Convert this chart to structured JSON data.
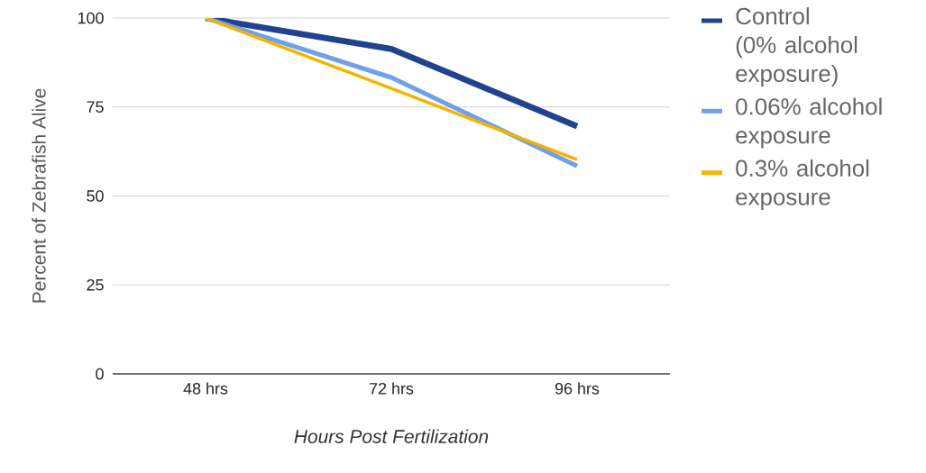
{
  "chart_data": {
    "type": "line",
    "xlabel": "Hours Post Fertilization",
    "ylabel": "Percent of Zebrafish Alive",
    "categories": [
      "48 hrs",
      "72 hrs",
      "96 hrs"
    ],
    "series": [
      {
        "name": "Control (0% alcohol exposure)",
        "color": "#21438f",
        "values": [
          100,
          91.3,
          69.6
        ]
      },
      {
        "name": "0.06% alcohol exposure",
        "color": "#6fa0ea",
        "values": [
          100,
          83.3,
          58.4
        ]
      },
      {
        "name": "0.3% alcohol exposure",
        "color": "#f5b400",
        "values": [
          100,
          80.2,
          60.2
        ]
      }
    ],
    "ylim": [
      0,
      100
    ],
    "yticks": [
      0,
      25,
      50,
      75,
      100
    ],
    "grid": "y",
    "legend": "right",
    "marker": "none",
    "line_style": "solid"
  }
}
